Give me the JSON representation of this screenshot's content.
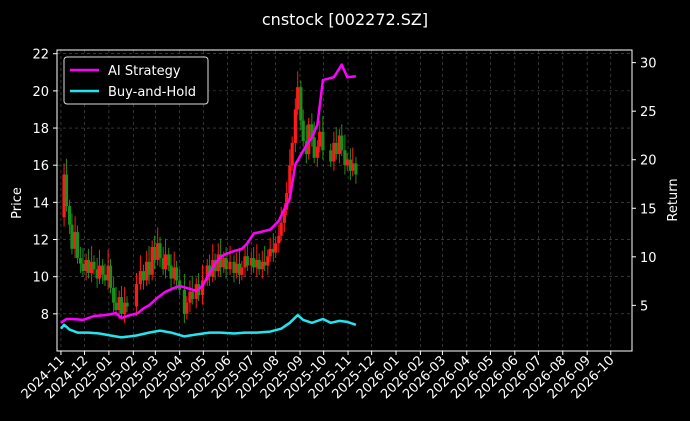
{
  "chart_data": {
    "type": "line",
    "title": "cnstock [002272.SZ]",
    "ylabel_left": "Price",
    "ylabel_right": "Return",
    "ylim_left": [
      6.0,
      22.2
    ],
    "ylim_right": [
      0.3,
      31.3
    ],
    "yticks_left": [
      "8",
      "10",
      "12",
      "14",
      "16",
      "18",
      "20",
      "22"
    ],
    "yticks_right": [
      "5",
      "10",
      "15",
      "20",
      "25",
      "30"
    ],
    "xticks": [
      "2024-11",
      "2024-12",
      "2025-01",
      "2025-02",
      "2025-03",
      "2025-04",
      "2025-05",
      "2025-06",
      "2025-07",
      "2025-08",
      "2025-09",
      "2025-10",
      "2025-11",
      "2025-12",
      "2026-01",
      "2026-02",
      "2026-03",
      "2026-04",
      "2026-05",
      "2026-06",
      "2026-07",
      "2026-08",
      "2026-09",
      "2026-10"
    ],
    "grid": true,
    "legend_position": "top-left",
    "colors": {
      "background": "#000000",
      "ai_strategy": "#ff00ff",
      "buy_and_hold": "#22e5f0",
      "candle_up": "#ff1a1a",
      "candle_down": "#1a8f1a",
      "grid": "#555555"
    },
    "price_series": {
      "name": "Price",
      "points": [
        [
          "2024-11-01",
          13.2
        ],
        [
          "2024-11-05",
          15.5
        ],
        [
          "2024-11-08",
          13.8
        ],
        [
          "2024-11-12",
          12.8
        ],
        [
          "2024-11-15",
          11.5
        ],
        [
          "2024-11-19",
          12.4
        ],
        [
          "2024-11-22",
          11.0
        ],
        [
          "2024-11-26",
          10.7
        ],
        [
          "2024-11-29",
          10.3
        ],
        [
          "2024-12-03",
          10.9
        ],
        [
          "2024-12-06",
          10.2
        ],
        [
          "2024-12-10",
          10.8
        ],
        [
          "2024-12-13",
          10.4
        ],
        [
          "2024-12-17",
          9.9
        ],
        [
          "2024-12-20",
          10.6
        ],
        [
          "2024-12-24",
          10.1
        ],
        [
          "2024-12-27",
          9.8
        ],
        [
          "2024-12-31",
          10.6
        ],
        [
          "2025-01-03",
          9.4
        ],
        [
          "2025-01-07",
          8.6
        ],
        [
          "2025-01-10",
          8.2
        ],
        [
          "2025-01-14",
          8.9
        ],
        [
          "2025-01-17",
          8.0
        ],
        [
          "2025-01-21",
          8.6
        ],
        [
          "2025-01-24",
          8.4
        ],
        [
          "2025-02-05",
          9.6
        ],
        [
          "2025-02-10",
          10.3
        ],
        [
          "2025-02-14",
          9.8
        ],
        [
          "2025-02-18",
          10.8
        ],
        [
          "2025-02-21",
          10.1
        ],
        [
          "2025-02-25",
          11.6
        ],
        [
          "2025-02-28",
          10.9
        ],
        [
          "2025-03-04",
          11.8
        ],
        [
          "2025-03-07",
          11.0
        ],
        [
          "2025-03-11",
          10.4
        ],
        [
          "2025-03-14",
          11.2
        ],
        [
          "2025-03-18",
          10.6
        ],
        [
          "2025-03-21",
          9.9
        ],
        [
          "2025-03-25",
          10.5
        ],
        [
          "2025-03-28",
          9.8
        ],
        [
          "2025-04-01",
          9.3
        ],
        [
          "2025-04-07",
          8.0
        ],
        [
          "2025-04-10",
          8.6
        ],
        [
          "2025-04-14",
          9.2
        ],
        [
          "2025-04-17",
          8.8
        ],
        [
          "2025-04-22",
          9.6
        ],
        [
          "2025-04-25",
          9.0
        ],
        [
          "2025-04-30",
          9.8
        ],
        [
          "2025-05-06",
          10.6
        ],
        [
          "2025-05-09",
          10.0
        ],
        [
          "2025-05-13",
          10.9
        ],
        [
          "2025-05-16",
          10.3
        ],
        [
          "2025-05-20",
          11.2
        ],
        [
          "2025-05-23",
          10.5
        ],
        [
          "2025-05-27",
          11.0
        ],
        [
          "2025-05-30",
          10.4
        ],
        [
          "2025-06-04",
          10.8
        ],
        [
          "2025-06-09",
          10.2
        ],
        [
          "2025-06-12",
          10.7
        ],
        [
          "2025-06-16",
          10.1
        ],
        [
          "2025-06-19",
          10.5
        ],
        [
          "2025-06-23",
          11.1
        ],
        [
          "2025-06-26",
          10.6
        ],
        [
          "2025-07-01",
          11.0
        ],
        [
          "2025-07-04",
          10.5
        ],
        [
          "2025-07-08",
          10.9
        ],
        [
          "2025-07-11",
          10.4
        ],
        [
          "2025-07-15",
          10.8
        ],
        [
          "2025-07-18",
          10.6
        ],
        [
          "2025-07-22",
          11.1
        ],
        [
          "2025-07-25",
          11.5
        ],
        [
          "2025-07-29",
          11.3
        ],
        [
          "2025-08-01",
          11.8
        ],
        [
          "2025-08-05",
          12.2
        ],
        [
          "2025-08-08",
          12.9
        ],
        [
          "2025-08-12",
          13.6
        ],
        [
          "2025-08-15",
          14.5
        ],
        [
          "2025-08-19",
          16.0
        ],
        [
          "2025-08-22",
          17.2
        ],
        [
          "2025-08-26",
          19.0
        ],
        [
          "2025-08-29",
          20.2
        ],
        [
          "2025-09-02",
          18.4
        ],
        [
          "2025-09-05",
          17.3
        ],
        [
          "2025-09-09",
          16.6
        ],
        [
          "2025-09-12",
          18.2
        ],
        [
          "2025-09-16",
          17.5
        ],
        [
          "2025-09-19",
          16.4
        ],
        [
          "2025-09-23",
          17.0
        ],
        [
          "2025-09-26",
          17.8
        ],
        [
          "2025-09-30",
          16.8
        ],
        [
          "2025-10-10",
          16.2
        ],
        [
          "2025-10-14",
          17.2
        ],
        [
          "2025-10-17",
          16.6
        ],
        [
          "2025-10-21",
          17.6
        ],
        [
          "2025-10-24",
          16.8
        ],
        [
          "2025-10-28",
          16.0
        ],
        [
          "2025-10-31",
          16.3
        ],
        [
          "2025-11-04",
          15.7
        ],
        [
          "2025-11-07",
          16.1
        ],
        [
          "2025-11-11",
          15.5
        ]
      ]
    },
    "series": [
      {
        "name": "AI Strategy",
        "axis": "right",
        "points": [
          [
            "2024-11-01",
            3.2
          ],
          [
            "2024-11-08",
            3.6
          ],
          [
            "2024-11-15",
            3.6
          ],
          [
            "2024-11-29",
            3.5
          ],
          [
            "2024-12-13",
            3.9
          ],
          [
            "2024-12-27",
            4.0
          ],
          [
            "2025-01-10",
            4.2
          ],
          [
            "2025-01-17",
            3.7
          ],
          [
            "2025-01-24",
            3.9
          ],
          [
            "2025-02-07",
            4.2
          ],
          [
            "2025-02-14",
            4.7
          ],
          [
            "2025-02-21",
            5.0
          ],
          [
            "2025-03-04",
            5.8
          ],
          [
            "2025-03-14",
            6.4
          ],
          [
            "2025-03-25",
            6.8
          ],
          [
            "2025-04-01",
            7.0
          ],
          [
            "2025-04-10",
            6.8
          ],
          [
            "2025-04-22",
            6.5
          ],
          [
            "2025-04-30",
            7.0
          ],
          [
            "2025-05-08",
            8.2
          ],
          [
            "2025-05-16",
            9.3
          ],
          [
            "2025-05-23",
            10.0
          ],
          [
            "2025-05-30",
            10.3
          ],
          [
            "2025-06-09",
            10.6
          ],
          [
            "2025-06-19",
            10.8
          ],
          [
            "2025-06-26",
            11.4
          ],
          [
            "2025-07-04",
            12.4
          ],
          [
            "2025-07-15",
            12.6
          ],
          [
            "2025-07-25",
            12.8
          ],
          [
            "2025-08-05",
            13.7
          ],
          [
            "2025-08-12",
            14.9
          ],
          [
            "2025-08-19",
            16.0
          ],
          [
            "2025-08-26",
            19.5
          ],
          [
            "2025-09-02",
            20.5
          ],
          [
            "2025-09-09",
            21.5
          ],
          [
            "2025-09-16",
            22.3
          ],
          [
            "2025-09-23",
            23.6
          ],
          [
            "2025-09-30",
            28.2
          ],
          [
            "2025-10-14",
            28.5
          ],
          [
            "2025-10-24",
            29.8
          ],
          [
            "2025-10-31",
            28.5
          ],
          [
            "2025-11-11",
            28.6
          ]
        ]
      },
      {
        "name": "Buy-and-Hold",
        "axis": "right",
        "points": [
          [
            "2024-11-01",
            2.6
          ],
          [
            "2024-11-05",
            3.0
          ],
          [
            "2024-11-12",
            2.5
          ],
          [
            "2024-11-22",
            2.2
          ],
          [
            "2024-12-06",
            2.2
          ],
          [
            "2024-12-20",
            2.1
          ],
          [
            "2025-01-03",
            1.9
          ],
          [
            "2025-01-17",
            1.7
          ],
          [
            "2025-02-05",
            1.9
          ],
          [
            "2025-02-21",
            2.2
          ],
          [
            "2025-03-07",
            2.4
          ],
          [
            "2025-03-21",
            2.2
          ],
          [
            "2025-04-07",
            1.8
          ],
          [
            "2025-04-22",
            2.0
          ],
          [
            "2025-05-09",
            2.2
          ],
          [
            "2025-05-23",
            2.2
          ],
          [
            "2025-06-09",
            2.1
          ],
          [
            "2025-06-23",
            2.2
          ],
          [
            "2025-07-08",
            2.2
          ],
          [
            "2025-07-25",
            2.3
          ],
          [
            "2025-08-08",
            2.6
          ],
          [
            "2025-08-19",
            3.2
          ],
          [
            "2025-08-29",
            4.0
          ],
          [
            "2025-09-05",
            3.5
          ],
          [
            "2025-09-16",
            3.2
          ],
          [
            "2025-09-30",
            3.6
          ],
          [
            "2025-10-10",
            3.2
          ],
          [
            "2025-10-21",
            3.4
          ],
          [
            "2025-10-31",
            3.3
          ],
          [
            "2025-11-11",
            3.0
          ]
        ]
      }
    ]
  }
}
